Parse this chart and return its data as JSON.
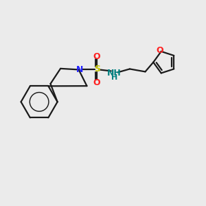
{
  "background_color": "#ebebeb",
  "bond_color": "#1a1a1a",
  "N_color": "#2020ff",
  "S_color": "#cccc00",
  "O_color": "#ff2020",
  "NH_color": "#008080",
  "line_width": 1.6,
  "figsize": [
    3.0,
    3.0
  ],
  "dpi": 100,
  "xlim": [
    -4.2,
    4.8
  ],
  "ylim": [
    -2.8,
    2.8
  ]
}
